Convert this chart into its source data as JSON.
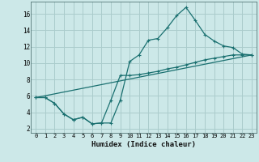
{
  "xlabel": "Humidex (Indice chaleur)",
  "bg_color": "#cce8e8",
  "grid_color": "#aacccc",
  "line_color": "#1a7070",
  "xlim": [
    -0.5,
    23.5
  ],
  "ylim": [
    1.5,
    17.5
  ],
  "xticks": [
    0,
    1,
    2,
    3,
    4,
    5,
    6,
    7,
    8,
    9,
    10,
    11,
    12,
    13,
    14,
    15,
    16,
    17,
    18,
    19,
    20,
    21,
    22,
    23
  ],
  "yticks": [
    2,
    4,
    6,
    8,
    10,
    12,
    14,
    16
  ],
  "line1_x": [
    0,
    1,
    2,
    3,
    4,
    5,
    6,
    7,
    8,
    9,
    10,
    11,
    12,
    13,
    14,
    15,
    16,
    17,
    18,
    19,
    20,
    21,
    22,
    23
  ],
  "line1_y": [
    5.8,
    5.8,
    5.1,
    3.8,
    3.1,
    3.4,
    2.6,
    2.7,
    2.7,
    5.5,
    10.2,
    11.0,
    12.8,
    13.0,
    14.3,
    15.8,
    16.8,
    15.2,
    13.5,
    12.7,
    12.1,
    11.9,
    11.1,
    11.0
  ],
  "line2_x": [
    0,
    1,
    2,
    3,
    4,
    5,
    6,
    7,
    8,
    9,
    10,
    11,
    12,
    13,
    14,
    15,
    16,
    17,
    18,
    19,
    20,
    21,
    22,
    23
  ],
  "line2_y": [
    5.8,
    5.8,
    5.1,
    3.8,
    3.1,
    3.4,
    2.6,
    2.7,
    5.5,
    8.5,
    8.5,
    8.6,
    8.8,
    9.0,
    9.3,
    9.5,
    9.8,
    10.1,
    10.4,
    10.6,
    10.8,
    11.0,
    11.0,
    11.0
  ],
  "line3_x": [
    0,
    23
  ],
  "line3_y": [
    5.8,
    11.0
  ]
}
